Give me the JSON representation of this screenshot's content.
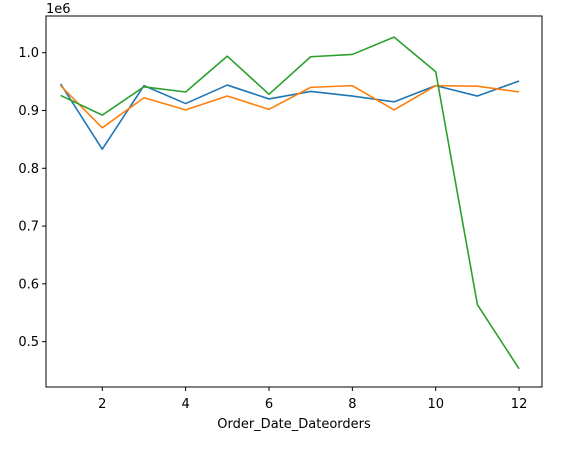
{
  "chart_data": {
    "type": "line",
    "title": "",
    "xlabel": "Order_Date_Dateorders",
    "ylabel": "",
    "y_offset_label": "1e6",
    "xlim": [
      0.65,
      12.55
    ],
    "ylim": [
      0.4215,
      1.0635
    ],
    "x_ticks": [
      2,
      4,
      6,
      8,
      10,
      12
    ],
    "x_tick_labels": [
      "2",
      "4",
      "6",
      "8",
      "10",
      "12"
    ],
    "y_ticks": [
      0.5,
      0.6,
      0.7,
      0.8,
      0.9,
      1.0
    ],
    "y_tick_labels": [
      "0.5",
      "0.6",
      "0.7",
      "0.8",
      "0.9",
      "1.0"
    ],
    "grid": false,
    "legend": false,
    "x": [
      1,
      2,
      3,
      4,
      5,
      6,
      7,
      8,
      9,
      10,
      11,
      12
    ],
    "series": [
      {
        "color": "#1f77b4",
        "values": [
          0.946,
          0.833,
          0.943,
          0.912,
          0.944,
          0.92,
          0.933,
          0.925,
          0.915,
          0.943,
          0.925,
          0.951
        ]
      },
      {
        "color": "#ff7f0e",
        "values": [
          0.943,
          0.87,
          0.922,
          0.901,
          0.925,
          0.902,
          0.94,
          0.943,
          0.901,
          0.943,
          0.942,
          0.932
        ]
      },
      {
        "color": "#2ca02c",
        "values": [
          0.926,
          0.892,
          0.941,
          0.932,
          0.994,
          0.928,
          0.993,
          0.997,
          1.027,
          0.967,
          0.564,
          0.453
        ]
      }
    ]
  }
}
